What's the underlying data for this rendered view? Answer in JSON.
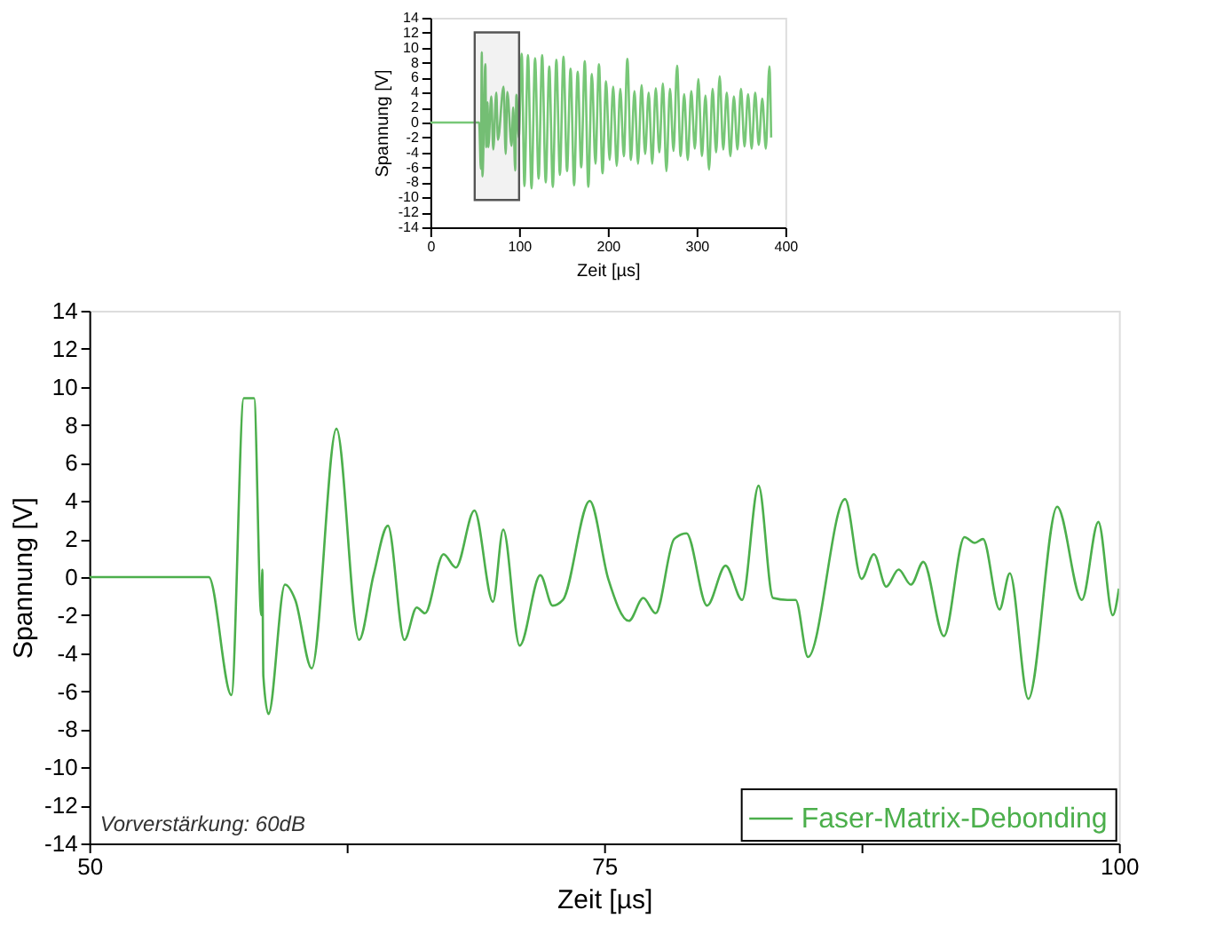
{
  "chart_data": [
    {
      "type": "line",
      "xlabel": "Zeit [µs]",
      "ylabel": "Spannung [V]",
      "xlim": [
        0,
        400
      ],
      "ylim": [
        -14,
        14
      ],
      "xticks": [
        0,
        100,
        200,
        300,
        400
      ],
      "yticks": [
        -14,
        -12,
        -10,
        -8,
        -6,
        -4,
        -2,
        0,
        2,
        4,
        6,
        8,
        10,
        12,
        14
      ],
      "grid": false,
      "legend": false,
      "bands": [
        {
          "axis": "x",
          "from": 50,
          "to": 100,
          "color": "#555555"
        }
      ],
      "series": [
        {
          "color": "#77c777",
          "x": [
            0,
            55,
            57,
            58,
            58.7,
            62,
            63,
            64.5,
            65.3,
            68.7,
            70.9,
            74.3,
            76.2,
            82.5,
            84.9,
            86.7,
            91.5,
            93.4,
            95.6,
            97,
            99.7,
            103,
            106,
            110,
            114,
            118,
            122,
            126,
            130,
            134,
            138,
            142,
            146,
            150,
            154,
            158,
            162,
            166,
            170,
            174,
            178,
            182,
            186,
            190,
            194,
            198,
            202,
            206,
            210,
            214,
            218,
            222,
            226,
            230,
            234,
            238,
            242,
            246,
            250,
            254,
            258,
            262,
            266,
            270,
            274,
            278,
            282,
            286,
            290,
            294,
            298,
            302,
            306,
            310,
            314,
            318,
            322,
            326,
            330,
            334,
            338,
            342,
            346,
            350,
            354,
            358,
            362,
            366,
            370,
            374,
            378,
            382,
            384
          ],
          "values": [
            0,
            0,
            -6.2,
            9.4,
            -7.2,
            7.8,
            -3.3,
            2.7,
            -3.3,
            3.5,
            -3.6,
            4,
            -2.3,
            4.8,
            -4.2,
            4.1,
            -3.1,
            2,
            -6.4,
            3.7,
            -2,
            9.2,
            -8.5,
            9,
            -8.8,
            8.6,
            -7.5,
            9,
            -8,
            7.5,
            -8.6,
            8.4,
            -7,
            8.8,
            -6.5,
            7.2,
            -8.4,
            6.8,
            -6,
            8.2,
            -8.6,
            6.5,
            -5.5,
            7.8,
            -6.8,
            5.5,
            -5,
            4.8,
            -5.8,
            4.5,
            -4.5,
            8.5,
            -5,
            4.2,
            -5.5,
            5,
            -4.2,
            4,
            -5.5,
            4.6,
            -4,
            5.2,
            -6.5,
            4.5,
            -3.8,
            7.6,
            -4.5,
            3.8,
            -5,
            4.2,
            -3.5,
            5.8,
            -4.5,
            3.6,
            -6.3,
            4.5,
            -4,
            6.2,
            -3.6,
            4,
            -4.5,
            3.5,
            -3.6,
            4.5,
            -3.2,
            3.8,
            -3.5,
            4,
            -3,
            3.2,
            -3.5,
            7.5,
            -2
          ]
        }
      ]
    },
    {
      "type": "line",
      "xlabel": "Zeit [µs]",
      "ylabel": "Spannung [V]",
      "xlim": [
        50,
        100
      ],
      "ylim": [
        -14,
        14
      ],
      "xticks": [
        50,
        {
          "value": 62.5,
          "label": null
        },
        75,
        {
          "value": 87.5,
          "label": null
        },
        100
      ],
      "yticks": [
        -14,
        -12,
        -10,
        -8,
        -6,
        -4,
        -2,
        0,
        2,
        4,
        6,
        8,
        10,
        12,
        14
      ],
      "grid": false,
      "legend": "bottom right",
      "annotations": [
        "Vorverstärkung: 60dB"
      ],
      "series": [
        {
          "name": "Faser-Matrix-Debonding",
          "color": "#4caf4c",
          "x": [
            50,
            55.8,
            56.9,
            57.5,
            58,
            58.35,
            58.4,
            58.45,
            58.7,
            59.5,
            60,
            60.8,
            62,
            63.1,
            63.8,
            64.5,
            65.3,
            65.9,
            66.3,
            67.2,
            67.8,
            68.7,
            69.6,
            70.1,
            70.9,
            71.9,
            72.5,
            73,
            74.3,
            75.2,
            76.2,
            76.9,
            77.5,
            78.4,
            79,
            80,
            80.9,
            81.7,
            82.5,
            83.2,
            83.9,
            84.3,
            84.9,
            86.7,
            87.5,
            88.1,
            88.7,
            89.3,
            89.9,
            90.5,
            91.5,
            92.5,
            93,
            93.4,
            94.2,
            94.7,
            95.6,
            97,
            98.2,
            99,
            99.7,
            100
          ],
          "values": [
            0,
            0,
            -6.2,
            9.4,
            9.4,
            -2,
            0.4,
            -5.2,
            -7.2,
            -0.4,
            -1.2,
            -4.8,
            7.8,
            -3.3,
            0.1,
            2.7,
            -3.3,
            -1.6,
            -1.9,
            1.2,
            0.5,
            3.5,
            -1.3,
            2.5,
            -3.6,
            0.1,
            -1.5,
            -1.2,
            4,
            -0.1,
            -2.3,
            -1.1,
            -1.9,
            2,
            2.3,
            -1.5,
            0.6,
            -1.2,
            4.8,
            -1.1,
            -1.2,
            -1.2,
            -4.2,
            4.1,
            -0.1,
            1.2,
            -0.5,
            0.4,
            -0.4,
            0.8,
            -3.1,
            2.1,
            1.8,
            2,
            -1.7,
            0.2,
            -6.4,
            3.7,
            -1.2,
            2.9,
            -2,
            -0.6
          ]
        }
      ]
    }
  ]
}
